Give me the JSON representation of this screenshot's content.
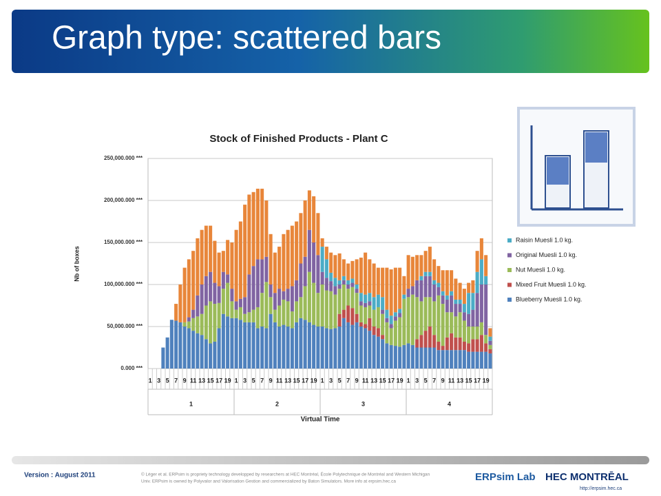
{
  "slide": {
    "title": "Graph type: scattered bars",
    "version": "Version : August 2011",
    "copyright": [
      "© Léger et al. ERPsim is propriety technology developped by researchers at HEC Montréal, École Polytechnique de Montréal and Western Michigan",
      "Univ. ERPsim is owned by Polyvalor and Valorisation Gestion and commercialized by Baton Simulators. More info at erpsim.hec.ca"
    ],
    "logo_left": "ERPsim Lab",
    "logo_right": "HEC MONTRĒAL",
    "url": "http://erpsim.hec.ca"
  },
  "chart_data": {
    "type": "stacked_bar",
    "title": "Stock of Finished Products - Plant C",
    "ylabel": "Nb of boxes",
    "xlabel": "Virtual Time",
    "categories": [
      "1",
      null,
      "3",
      null,
      "5",
      null,
      "7",
      null,
      "9",
      null,
      "11",
      null,
      "13",
      null,
      "15",
      null,
      "17",
      null,
      "19",
      null,
      "1",
      null,
      "3",
      null,
      "5",
      null,
      "7",
      null,
      "9",
      null,
      "11",
      null,
      "13",
      null,
      "15",
      null,
      "17",
      null,
      "19",
      null,
      "1",
      null,
      "3",
      null,
      "5",
      null,
      "7",
      null,
      "9",
      null,
      "11",
      null,
      "13",
      null,
      "15",
      null,
      "17",
      null,
      "19",
      null,
      "1",
      null,
      "3",
      null,
      "5",
      null,
      "7",
      null,
      "9",
      null,
      "11",
      null,
      "13",
      null,
      "15",
      null,
      "17",
      null,
      "19",
      null
    ],
    "groups": [
      "1",
      "2",
      "3",
      "4"
    ],
    "ylim": [
      0,
      250000
    ],
    "yticks": [
      {
        "value": 0,
        "label": "0.000 ***"
      },
      {
        "value": 50000,
        "label": "50,000.000 ***"
      },
      {
        "value": 100000,
        "label": "100,000.000 ***"
      },
      {
        "value": 150000,
        "label": "150,000.000 ***"
      },
      {
        "value": 200000,
        "label": "200,000.000 ***"
      },
      {
        "value": 250000,
        "label": "250,000.000 ***"
      }
    ],
    "grid": true,
    "legend": "right",
    "series": [
      {
        "name": "Blueberry Muesli 1.0 kg.",
        "color": "#4f81bd",
        "values": [
          0,
          0,
          0,
          25000,
          37000,
          58000,
          57000,
          55000,
          50000,
          48000,
          45000,
          42000,
          40000,
          35000,
          30000,
          32000,
          48000,
          65000,
          62000,
          60000,
          60000,
          58000,
          55000,
          55000,
          55000,
          48000,
          50000,
          48000,
          65000,
          55000,
          50000,
          52000,
          50000,
          48000,
          55000,
          60000,
          58000,
          55000,
          52000,
          50000,
          50000,
          48000,
          47000,
          48000,
          50000,
          60000,
          55000,
          52000,
          55000,
          50000,
          48000,
          45000,
          40000,
          38000,
          35000,
          30000,
          28000,
          27000,
          26000,
          28000,
          30000,
          28000,
          25000,
          25000,
          25000,
          25000,
          25000,
          22000,
          22000,
          22000,
          22000,
          22000,
          22000,
          22000,
          20000,
          20000,
          20000,
          20000,
          20000,
          18000
        ]
      },
      {
        "name": "Mixed Fruit Muesli 1.0 kg.",
        "color": "#c0504d",
        "values": [
          0,
          0,
          0,
          0,
          0,
          0,
          0,
          0,
          0,
          0,
          0,
          0,
          0,
          0,
          0,
          0,
          0,
          0,
          0,
          0,
          0,
          0,
          0,
          0,
          0,
          0,
          0,
          0,
          0,
          0,
          0,
          0,
          0,
          0,
          0,
          0,
          0,
          0,
          0,
          0,
          0,
          0,
          0,
          0,
          15000,
          10000,
          20000,
          20000,
          10000,
          5000,
          5000,
          15000,
          10000,
          10000,
          5000,
          0,
          0,
          0,
          0,
          0,
          0,
          0,
          10000,
          15000,
          20000,
          25000,
          15000,
          10000,
          5000,
          15000,
          20000,
          15000,
          15000,
          10000,
          10000,
          15000,
          15000,
          20000,
          10000,
          5000
        ]
      },
      {
        "name": "Nut Muesli 1.0 kg.",
        "color": "#9bbb59",
        "values": [
          0,
          0,
          0,
          0,
          0,
          0,
          0,
          0,
          5000,
          8000,
          15000,
          20000,
          25000,
          40000,
          50000,
          45000,
          30000,
          30000,
          40000,
          20000,
          10000,
          15000,
          10000,
          12000,
          15000,
          25000,
          40000,
          55000,
          20000,
          15000,
          25000,
          30000,
          30000,
          20000,
          25000,
          25000,
          40000,
          60000,
          50000,
          40000,
          50000,
          45000,
          45000,
          40000,
          30000,
          30000,
          20000,
          25000,
          25000,
          20000,
          20000,
          15000,
          20000,
          25000,
          25000,
          25000,
          20000,
          30000,
          35000,
          55000,
          55000,
          60000,
          50000,
          40000,
          40000,
          35000,
          40000,
          55000,
          50000,
          30000,
          25000,
          25000,
          30000,
          25000,
          20000,
          15000,
          15000,
          15000,
          10000,
          5000
        ]
      },
      {
        "name": "Original Muesli 1.0 kg.",
        "color": "#8064a2",
        "values": [
          0,
          0,
          0,
          0,
          0,
          0,
          0,
          0,
          0,
          5000,
          10000,
          25000,
          35000,
          35000,
          35000,
          25000,
          20000,
          20000,
          10000,
          15000,
          10000,
          10000,
          20000,
          45000,
          52000,
          57000,
          40000,
          30000,
          15000,
          20000,
          20000,
          10000,
          15000,
          30000,
          25000,
          40000,
          35000,
          50000,
          48000,
          45000,
          15000,
          15000,
          12000,
          10000,
          5000,
          5000,
          5000,
          5000,
          5000,
          5000,
          5000,
          5000,
          0,
          0,
          5000,
          5000,
          5000,
          5000,
          5000,
          0,
          10000,
          10000,
          20000,
          25000,
          25000,
          25000,
          20000,
          10000,
          10000,
          15000,
          20000,
          15000,
          10000,
          10000,
          15000,
          20000,
          40000,
          45000,
          60000,
          5000
        ]
      },
      {
        "name": "Raisin Muesli 1.0 kg.",
        "color": "#4bacc6",
        "values": [
          0,
          0,
          0,
          0,
          0,
          0,
          0,
          0,
          0,
          0,
          0,
          0,
          0,
          0,
          0,
          0,
          0,
          0,
          0,
          0,
          0,
          0,
          0,
          0,
          0,
          0,
          0,
          0,
          0,
          0,
          0,
          0,
          0,
          0,
          0,
          0,
          0,
          0,
          0,
          0,
          30000,
          22000,
          10000,
          10000,
          5000,
          5000,
          5000,
          5000,
          5000,
          10000,
          10000,
          10000,
          15000,
          15000,
          15000,
          10000,
          10000,
          5000,
          5000,
          5000,
          0,
          0,
          0,
          5000,
          5000,
          5000,
          5000,
          5000,
          5000,
          5000,
          5000,
          5000,
          5000,
          10000,
          25000,
          20000,
          25000,
          30000,
          10000,
          5000
        ]
      },
      {
        "name": null,
        "color": "#e8863a",
        "values": [
          0,
          0,
          0,
          0,
          0,
          0,
          20000,
          45000,
          65000,
          69000,
          70000,
          68000,
          65000,
          60000,
          55000,
          50000,
          40000,
          25000,
          41000,
          55000,
          85000,
          92000,
          110000,
          95000,
          88000,
          84000,
          84000,
          67000,
          60000,
          48000,
          50000,
          68000,
          70000,
          72000,
          70000,
          60000,
          67000,
          47000,
          55000,
          50000,
          10000,
          15000,
          24000,
          27000,
          32000,
          20000,
          20000,
          21000,
          30000,
          42000,
          50000,
          40000,
          40000,
          32000,
          35000,
          50000,
          55000,
          53000,
          49000,
          22000,
          40000,
          35000,
          30000,
          25000,
          25000,
          30000,
          25000,
          20000,
          25000,
          30000,
          25000,
          25000,
          20000,
          18000,
          12000,
          15000,
          25000,
          25000,
          25000,
          10000
        ]
      }
    ]
  }
}
